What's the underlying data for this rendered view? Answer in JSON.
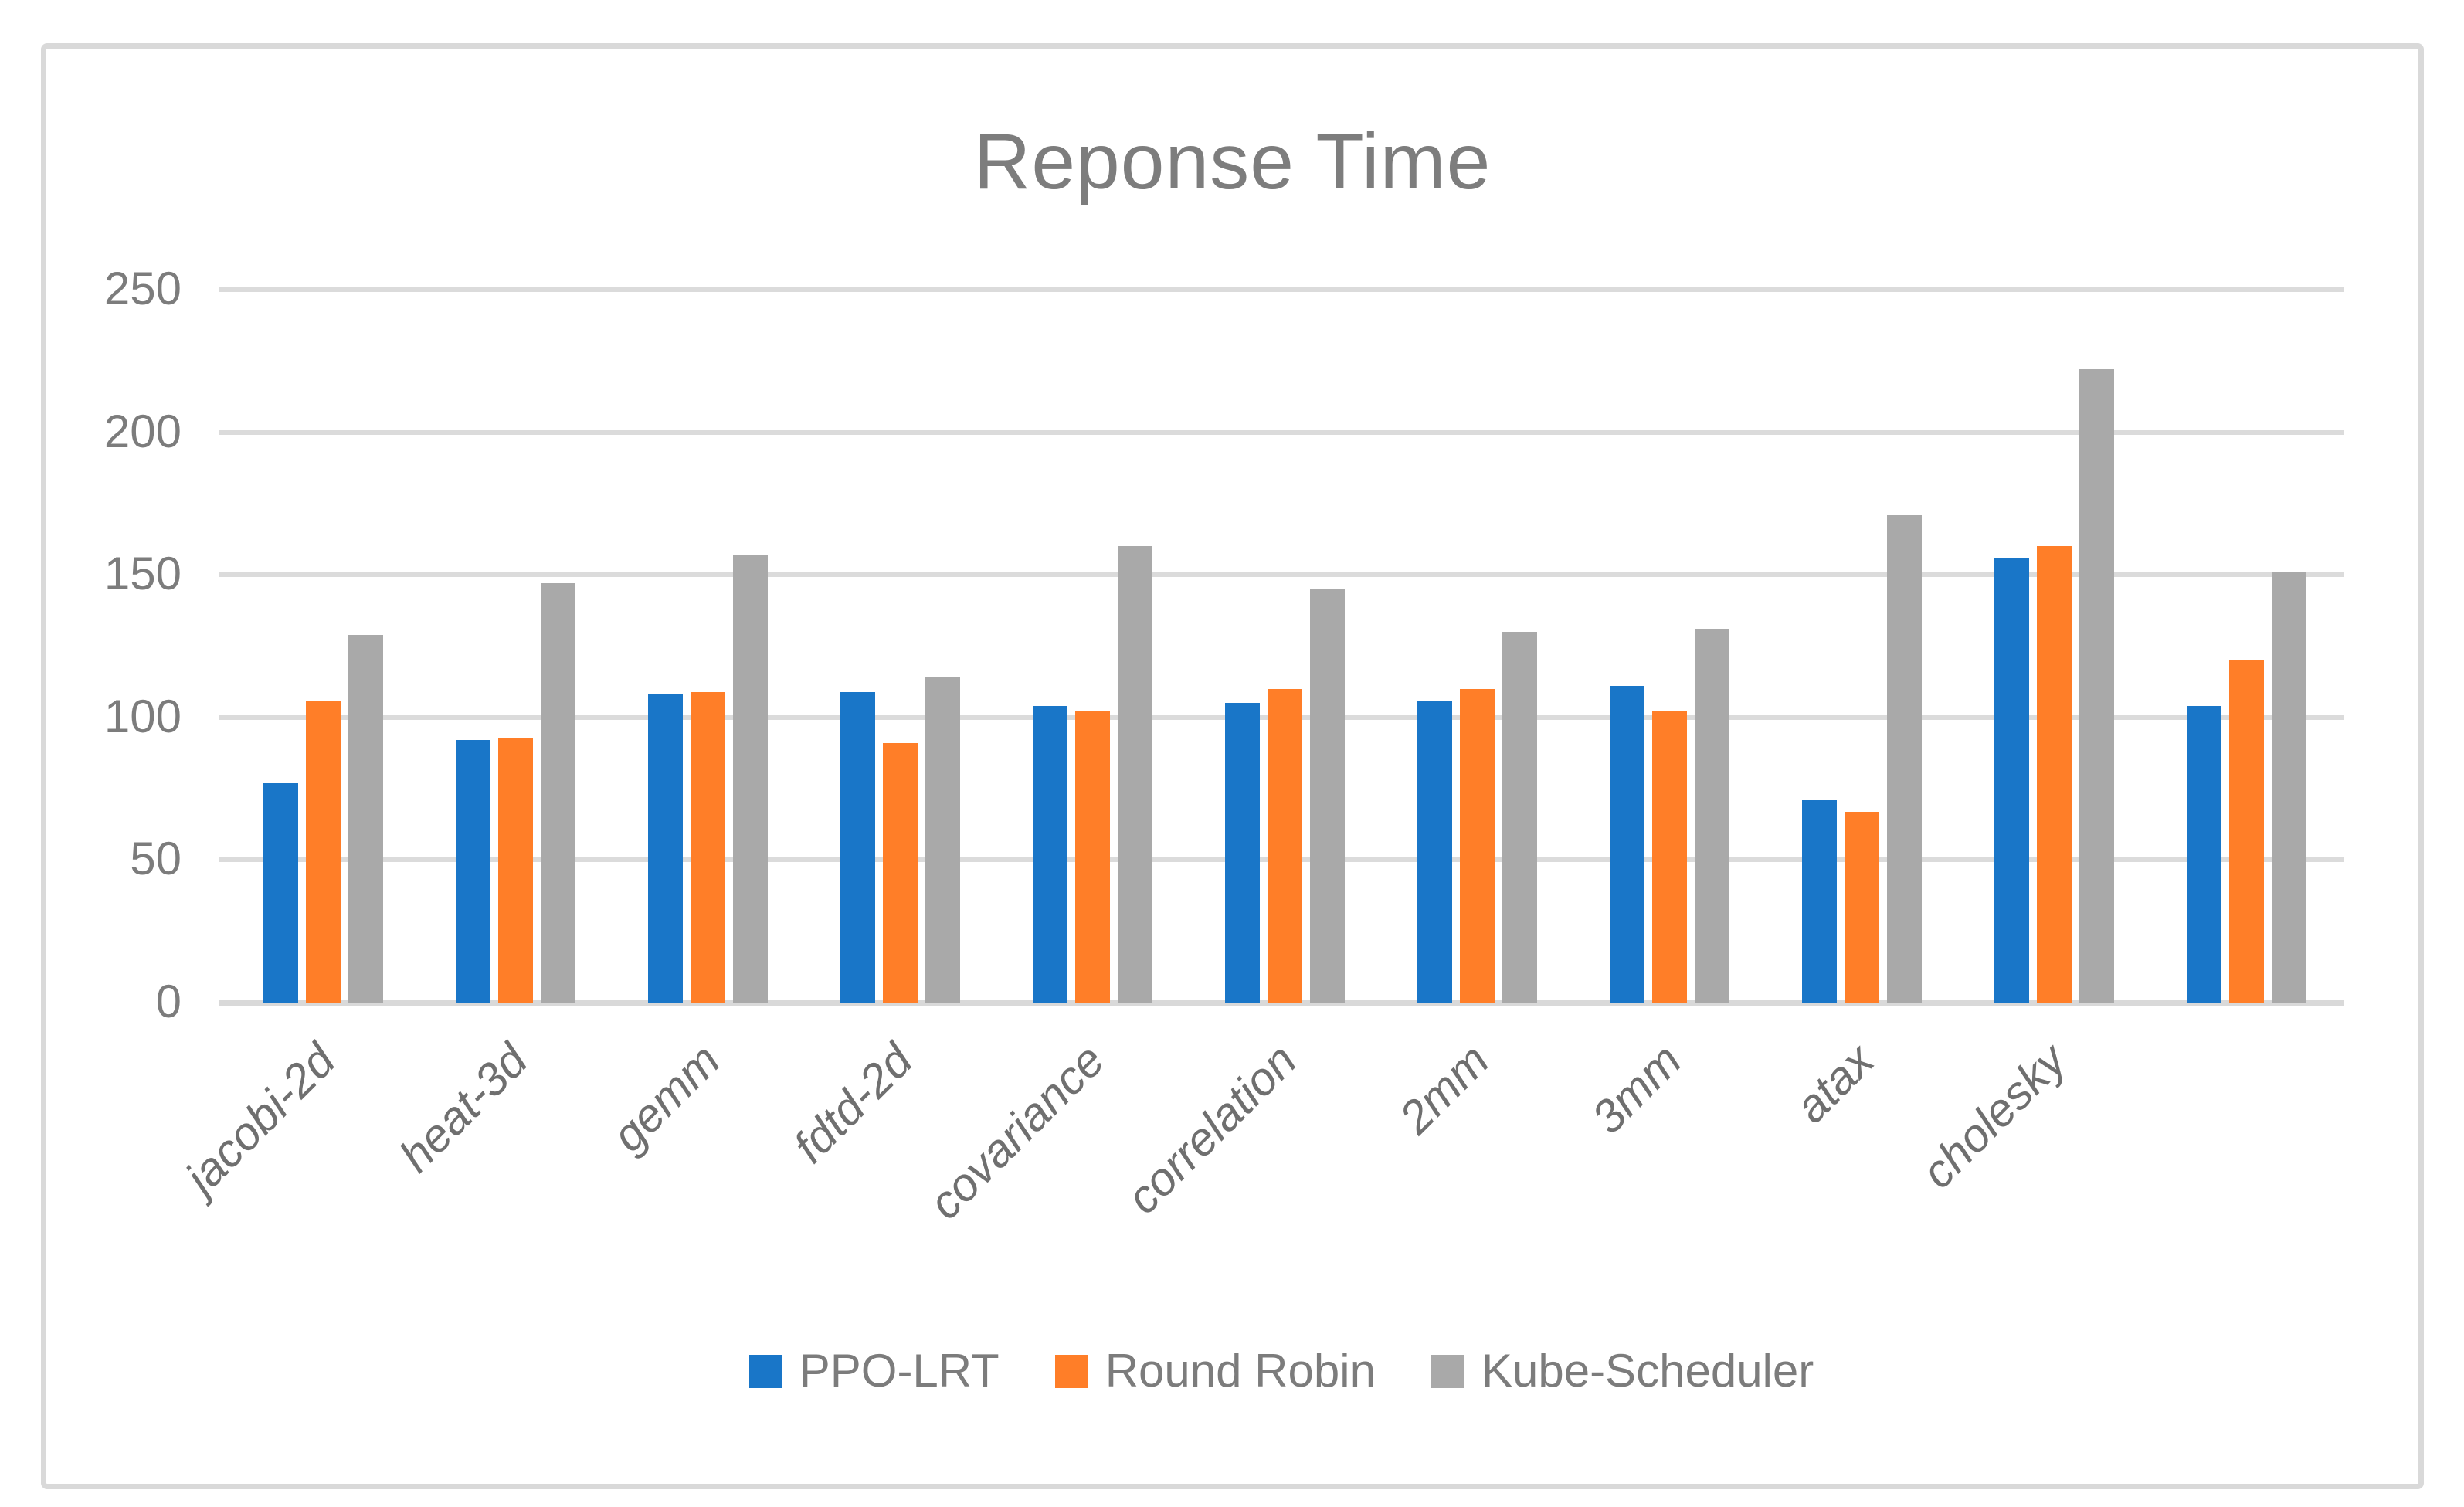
{
  "chart_data": {
    "type": "bar",
    "title": "Reponse Time",
    "categories": [
      "jacobi-2d",
      "heat-3d",
      "gemm",
      "fdtd-2d",
      "covariance",
      "correlation",
      "2mm",
      "3mm",
      "atax",
      "cholesky",
      ""
    ],
    "series": [
      {
        "name": "PPO-LRT",
        "color": "#1976C8",
        "values": [
          77,
          92,
          108,
          109,
          104,
          105,
          106,
          111,
          71,
          156,
          104
        ]
      },
      {
        "name": "Round Robin",
        "color": "#FF7E28",
        "values": [
          106,
          93,
          109,
          91,
          102,
          110,
          110,
          102,
          67,
          160,
          120
        ]
      },
      {
        "name": "Kube-Scheduler",
        "color": "#A9A9A9",
        "values": [
          129,
          147,
          157,
          114,
          160,
          145,
          130,
          131,
          171,
          222,
          151
        ]
      }
    ],
    "xlabel": "",
    "ylabel": "",
    "ylim": [
      0,
      250
    ],
    "yticks": [
      0,
      50,
      100,
      150,
      200,
      250
    ],
    "grid": true,
    "legend_position": "bottom",
    "colors": {
      "gridline": "#DBDBDB",
      "frame_border": "#D9D9D9",
      "title_text": "#7D7D7D",
      "tick_text": "#7C7C7C",
      "background": "#FFFFFF"
    }
  }
}
